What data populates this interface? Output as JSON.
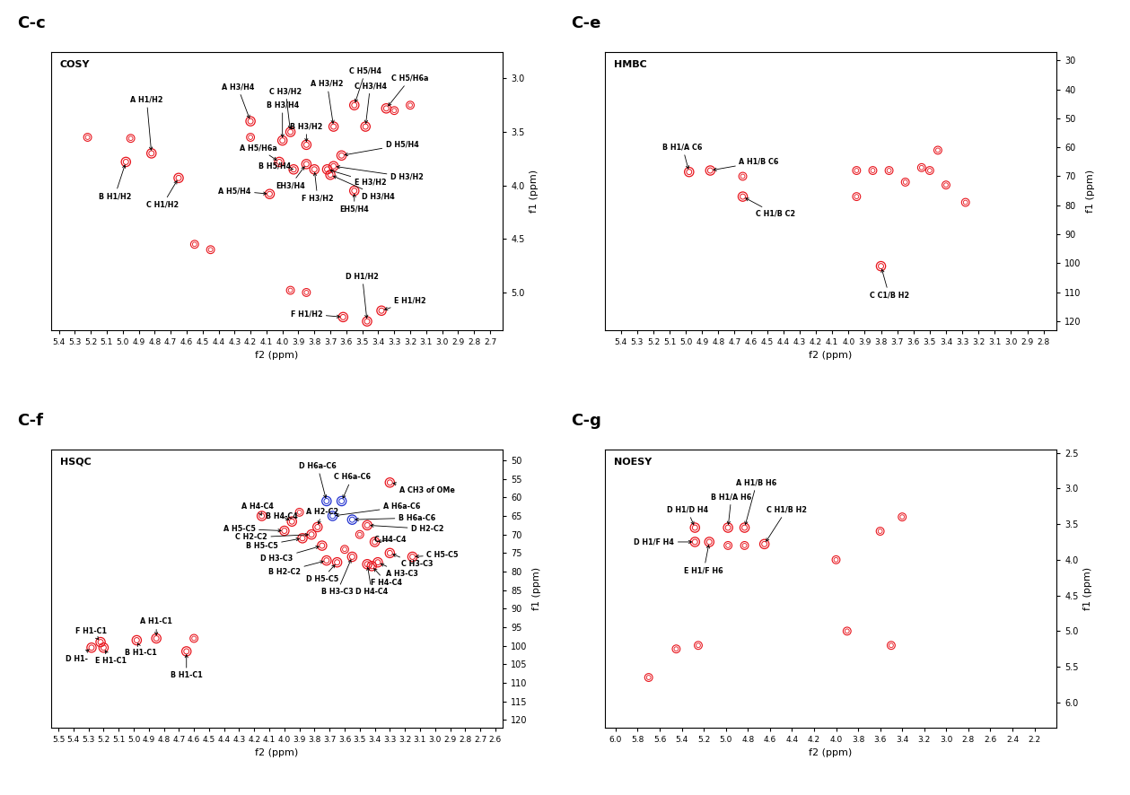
{
  "chart_data": [
    {
      "type": "scatter",
      "panel": "C-c",
      "title": "COSY",
      "x_label": "f2 (ppm)",
      "y_label": "f1 (ppm)",
      "xlim": [
        5.45,
        2.62
      ],
      "ylim": [
        5.35,
        2.75
      ],
      "xticks": [
        5.4,
        5.3,
        5.2,
        5.1,
        5.0,
        4.9,
        4.8,
        4.7,
        4.6,
        4.5,
        4.4,
        4.3,
        4.2,
        4.1,
        4.0,
        3.9,
        3.8,
        3.7,
        3.6,
        3.5,
        3.4,
        3.3,
        3.2,
        3.1,
        3.0,
        2.9,
        2.8,
        2.7
      ],
      "yticks": [
        3.0,
        3.5,
        4.0,
        4.5,
        5.0
      ],
      "color": "#e8141c",
      "peaks": {
        "labels": [
          "A H1/H2",
          "B H1/H2",
          "C H1/H2",
          "A H3/H4",
          "C H3/H2",
          "A H3/H2",
          "C H5/H4",
          "C H3/H4",
          "C H5/H6a",
          "B H3/H4",
          "B H3/H2",
          "A H5/H6a",
          "B H5/H4",
          "A H5/H4",
          "D H5/H4",
          "D H3/H2",
          "E H3/H2",
          "D H3/H4",
          "EH3/H4",
          "F H3/H2",
          "EH5/H4",
          "D H1/H2",
          "F H1/H2",
          "E H1/H2"
        ],
        "x": [
          4.82,
          4.98,
          4.65,
          4.2,
          3.95,
          3.68,
          3.55,
          3.48,
          3.35,
          4.0,
          3.85,
          4.02,
          3.93,
          4.08,
          3.63,
          3.68,
          3.72,
          3.7,
          3.85,
          3.8,
          3.55,
          3.47,
          3.62,
          3.38
        ],
        "y": [
          3.7,
          3.78,
          3.93,
          3.4,
          3.5,
          3.45,
          3.25,
          3.45,
          3.28,
          3.58,
          3.62,
          3.78,
          3.85,
          4.08,
          3.72,
          3.82,
          3.85,
          3.9,
          3.8,
          3.85,
          4.05,
          5.27,
          5.23,
          5.17
        ]
      },
      "other_peaks": {
        "x": [
          5.22,
          4.95,
          4.55,
          4.45,
          3.95,
          3.3,
          3.2,
          4.2,
          3.85
        ],
        "y": [
          3.55,
          3.56,
          4.55,
          4.6,
          4.98,
          3.3,
          3.25,
          3.55,
          5.0
        ]
      }
    },
    {
      "type": "scatter",
      "panel": "C-e",
      "title": "HMBC",
      "x_label": "f2 (ppm)",
      "y_label": "f1 (ppm)",
      "xlim": [
        5.5,
        2.72
      ],
      "ylim": [
        123,
        27
      ],
      "xticks": [
        5.4,
        5.3,
        5.2,
        5.1,
        5.0,
        4.9,
        4.8,
        4.7,
        4.6,
        4.5,
        4.4,
        4.3,
        4.2,
        4.1,
        4.0,
        3.9,
        3.8,
        3.7,
        3.6,
        3.5,
        3.4,
        3.3,
        3.2,
        3.1,
        3.0,
        2.9,
        2.8
      ],
      "yticks": [
        30,
        40,
        50,
        60,
        70,
        80,
        90,
        100,
        110,
        120
      ],
      "color": "#e8141c",
      "peaks": {
        "labels": [
          "B H1/A C6",
          "A H1/B C6",
          "C H1/B C2",
          "C C1/B H2"
        ],
        "x": [
          4.98,
          4.85,
          4.65,
          3.8
        ],
        "y": [
          68.5,
          68,
          77,
          101
        ]
      },
      "other_peaks": {
        "x": [
          4.65,
          3.95,
          3.85,
          3.75,
          3.5,
          3.45,
          3.4,
          3.28,
          3.95,
          3.65,
          3.55
        ],
        "y": [
          70,
          68,
          68,
          68,
          68,
          61,
          73,
          79,
          77,
          72,
          67
        ]
      }
    },
    {
      "type": "scatter",
      "panel": "C-f",
      "title": "HSQC",
      "x_label": "f2 (ppm)",
      "y_label": "f1 (ppm)",
      "xlim": [
        5.55,
        2.55
      ],
      "ylim": [
        122,
        47
      ],
      "xticks": [
        5.5,
        5.4,
        5.3,
        5.2,
        5.1,
        5.0,
        4.9,
        4.8,
        4.7,
        4.6,
        4.5,
        4.4,
        4.3,
        4.2,
        4.1,
        4.0,
        3.9,
        3.8,
        3.7,
        3.6,
        3.5,
        3.4,
        3.3,
        3.2,
        3.1,
        3.0,
        2.9,
        2.8,
        2.7,
        2.6
      ],
      "yticks": [
        50,
        55,
        60,
        65,
        70,
        75,
        80,
        85,
        90,
        95,
        100,
        105,
        110,
        115,
        120
      ],
      "color": "#e8141c",
      "peaks": {
        "labels": [
          "A H1-C1",
          "F H1-C1",
          "D H1-",
          "E H1-C1",
          "B H1-C1",
          "B H1-C1",
          "A CH3 of OMe",
          "D H6a-C6",
          "C H6a-C6",
          "A H6a-C6",
          "B H6a-C6",
          "D H2-C2",
          "A H4-C4",
          "B H4-C4",
          "A H2-C2",
          "A H5-C5",
          "C H2-C2",
          "B H5-C5",
          "D H3-C3",
          "B H2-C2",
          "D H5-C5",
          "B H3-C3",
          "D H4-C4",
          "F H4-C4",
          "A H3-C3",
          "C H3-C3",
          "C H5-C5",
          "C H4-C4"
        ],
        "x": [
          4.85,
          5.22,
          5.28,
          5.2,
          4.98,
          4.65,
          3.3,
          3.72,
          3.62,
          3.68,
          3.55,
          3.45,
          4.15,
          3.95,
          3.78,
          4.0,
          3.82,
          3.88,
          3.75,
          3.72,
          3.65,
          3.55,
          3.45,
          3.42,
          3.38,
          3.3,
          3.15,
          3.4
        ],
        "y": [
          98,
          99,
          100.5,
          100.5,
          98.5,
          101.5,
          56,
          61,
          61,
          65,
          66,
          67.5,
          65,
          66.5,
          68,
          69,
          70,
          71,
          73,
          77,
          77.5,
          76,
          78,
          78.5,
          77.5,
          75,
          76,
          72
        ],
        "colors": [
          "#e8141c",
          "#e8141c",
          "#e8141c",
          "#e8141c",
          "#e8141c",
          "#e8141c",
          "#e8141c",
          "#1f2fd0",
          "#1f2fd0",
          "#1f2fd0",
          "#1f2fd0",
          "#e8141c",
          "#e8141c",
          "#e8141c",
          "#e8141c",
          "#e8141c",
          "#e8141c",
          "#e8141c",
          "#e8141c",
          "#e8141c",
          "#e8141c",
          "#e8141c",
          "#e8141c",
          "#e8141c",
          "#e8141c",
          "#e8141c",
          "#e8141c",
          "#e8141c"
        ]
      },
      "other_peaks": {
        "x": [
          4.6,
          3.9,
          3.6,
          3.5
        ],
        "y": [
          98,
          64,
          74,
          70
        ]
      }
    },
    {
      "type": "scatter",
      "panel": "C-g",
      "title": "NOESY",
      "x_label": "f2 (ppm)",
      "y_label": "f1 (ppm)",
      "xlim": [
        6.1,
        2.0
      ],
      "ylim": [
        6.35,
        2.45
      ],
      "xticks": [
        6.0,
        5.8,
        5.6,
        5.4,
        5.2,
        5.0,
        4.8,
        4.6,
        4.4,
        4.2,
        4.0,
        3.8,
        3.6,
        3.4,
        3.2,
        3.0,
        2.8,
        2.6,
        2.4,
        2.2
      ],
      "yticks": [
        2.5,
        3.0,
        3.5,
        4.0,
        4.5,
        5.0,
        5.5,
        6.0
      ],
      "color": "#e8141c",
      "peaks": {
        "labels": [
          "D H1/D H4",
          "D H1/F H4",
          "E H1/F H6",
          "B H1/A H6",
          "A H1/B H6",
          "C H1/B H2"
        ],
        "x": [
          5.28,
          5.28,
          5.15,
          4.98,
          4.83,
          4.65
        ],
        "y": [
          3.55,
          3.75,
          3.75,
          3.55,
          3.55,
          3.78
        ]
      },
      "other_peaks": {
        "x": [
          4.98,
          4.83,
          5.25,
          5.45,
          3.9,
          3.5,
          5.7,
          4.0,
          3.6,
          3.4
        ],
        "y": [
          3.8,
          3.8,
          5.2,
          5.25,
          5.0,
          5.2,
          5.65,
          4.0,
          3.6,
          3.4
        ]
      }
    }
  ]
}
